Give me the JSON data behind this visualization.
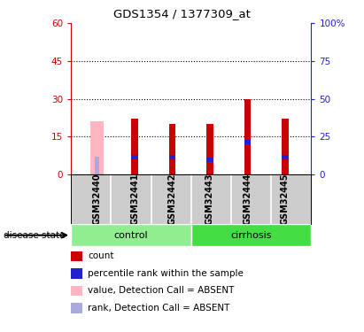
{
  "title": "GDS1354 / 1377309_at",
  "samples": [
    "GSM32440",
    "GSM32441",
    "GSM32442",
    "GSM32443",
    "GSM32444",
    "GSM32445"
  ],
  "groups": [
    "control",
    "control",
    "control",
    "cirrhosis",
    "cirrhosis",
    "cirrhosis"
  ],
  "red_values": [
    0,
    22,
    20,
    20,
    30,
    22
  ],
  "blue_values": [
    0,
    7,
    7,
    6,
    13,
    7
  ],
  "pink_value": 21,
  "lightblue_value": 7,
  "absent_index": 0,
  "ylim_left": [
    0,
    60
  ],
  "ylim_right": [
    0,
    100
  ],
  "yticks_left": [
    0,
    15,
    30,
    45,
    60
  ],
  "yticks_right": [
    0,
    25,
    50,
    75,
    100
  ],
  "grid_lines": [
    15,
    30,
    45
  ],
  "red_color": "#cc0000",
  "blue_color": "#2222cc",
  "pink_color": "#ffb6c1",
  "lightblue_color": "#aaaadd",
  "control_color": "#90ee90",
  "cirrhosis_color": "#44dd44",
  "group_bg_color": "#cccccc",
  "plot_bg_color": "#ffffff",
  "left_axis_color": "#cc0000",
  "right_axis_color": "#2222cc",
  "disease_state_label": "disease state",
  "legend_items": [
    {
      "label": "count",
      "color": "#cc0000"
    },
    {
      "label": "percentile rank within the sample",
      "color": "#2222cc"
    },
    {
      "label": "value, Detection Call = ABSENT",
      "color": "#ffb6c1"
    },
    {
      "label": "rank, Detection Call = ABSENT",
      "color": "#aaaadd"
    }
  ]
}
